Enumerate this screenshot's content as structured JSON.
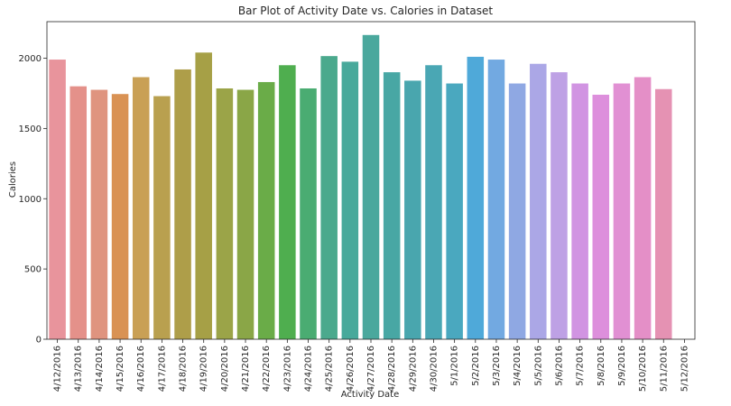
{
  "chart_data": {
    "type": "bar",
    "title": "Bar Plot of Activity Date vs. Calories in Dataset",
    "xlabel": "Activity Date",
    "ylabel": "Calories",
    "ylim": [
      0,
      2260
    ],
    "yticks": [
      "0",
      "500",
      "1000",
      "1500",
      "2000"
    ],
    "grid": false,
    "legend": "none",
    "categories": [
      "4/12/2016",
      "4/13/2016",
      "4/14/2016",
      "4/15/2016",
      "4/16/2016",
      "4/17/2016",
      "4/18/2016",
      "4/19/2016",
      "4/20/2016",
      "4/21/2016",
      "4/22/2016",
      "4/23/2016",
      "4/24/2016",
      "4/25/2016",
      "4/26/2016",
      "4/27/2016",
      "4/28/2016",
      "4/29/2016",
      "4/30/2016",
      "5/1/2016",
      "5/2/2016",
      "5/3/2016",
      "5/4/2016",
      "5/5/2016",
      "5/6/2016",
      "5/7/2016",
      "5/8/2016",
      "5/9/2016",
      "5/10/2016",
      "5/11/2016",
      "5/12/2016"
    ],
    "values": [
      1990,
      1800,
      1775,
      1745,
      1865,
      1730,
      1920,
      2040,
      1785,
      1775,
      1830,
      1950,
      1785,
      2015,
      1975,
      2165,
      1900,
      1840,
      1950,
      1820,
      2010,
      1990,
      1820,
      1960,
      1900,
      1820,
      1740,
      1820,
      1865,
      1780,
      0
    ],
    "colors": [
      "#e8949c",
      "#e4918a",
      "#df947f",
      "#d99254",
      "#c9a055",
      "#b9a04f",
      "#ae9e49",
      "#a6a046",
      "#9ba448",
      "#8aa647",
      "#6aac48",
      "#4fae4f",
      "#4aac72",
      "#4ba98d",
      "#48a99b",
      "#4aa89d",
      "#48a7a4",
      "#49a6ae",
      "#4aa7b4",
      "#4aa8bf",
      "#4fa9d9",
      "#72a9e1",
      "#8fa8e3",
      "#aba7e6",
      "#bea1e5",
      "#d194e2",
      "#dd8fdc",
      "#e190d3",
      "#e48fc7",
      "#e592b3",
      "#e8949c"
    ]
  }
}
